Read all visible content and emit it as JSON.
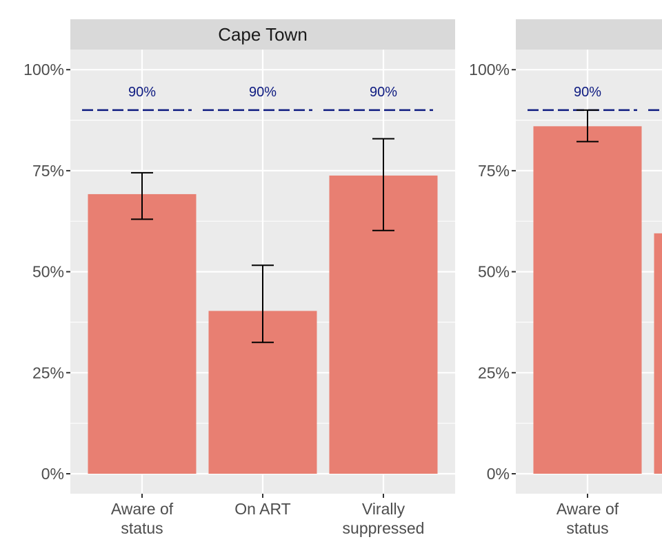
{
  "chart_data": {
    "type": "bar",
    "yticks": [
      "0%",
      "25%",
      "50%",
      "75%",
      "100%"
    ],
    "ylim": [
      0,
      105
    ],
    "target": {
      "value": 90,
      "label": "90%",
      "color": "#0d1a80"
    },
    "colors": {
      "bar": "#e87f72",
      "panel": "#ebebeb",
      "strip": "#d9d9d9",
      "grid": "#ffffff",
      "error": "#000000"
    },
    "grid": true,
    "legend": "none",
    "panels": [
      {
        "title": "Cape Town",
        "categories": [
          [
            "Aware of",
            "status"
          ],
          [
            "On ART"
          ],
          [
            "Virally",
            "suppressed"
          ]
        ],
        "values": [
          69.2,
          40.3,
          73.8
        ],
        "lower": [
          63.0,
          32.5,
          60.2
        ],
        "upper": [
          74.5,
          51.6,
          82.9
        ]
      },
      {
        "title": "",
        "categories": [
          [
            "Aware of",
            "status"
          ],
          [
            ""
          ]
        ],
        "values": [
          86.0,
          59.5
        ],
        "lower": [
          82.2,
          null
        ],
        "upper": [
          90.0,
          null
        ]
      }
    ]
  }
}
